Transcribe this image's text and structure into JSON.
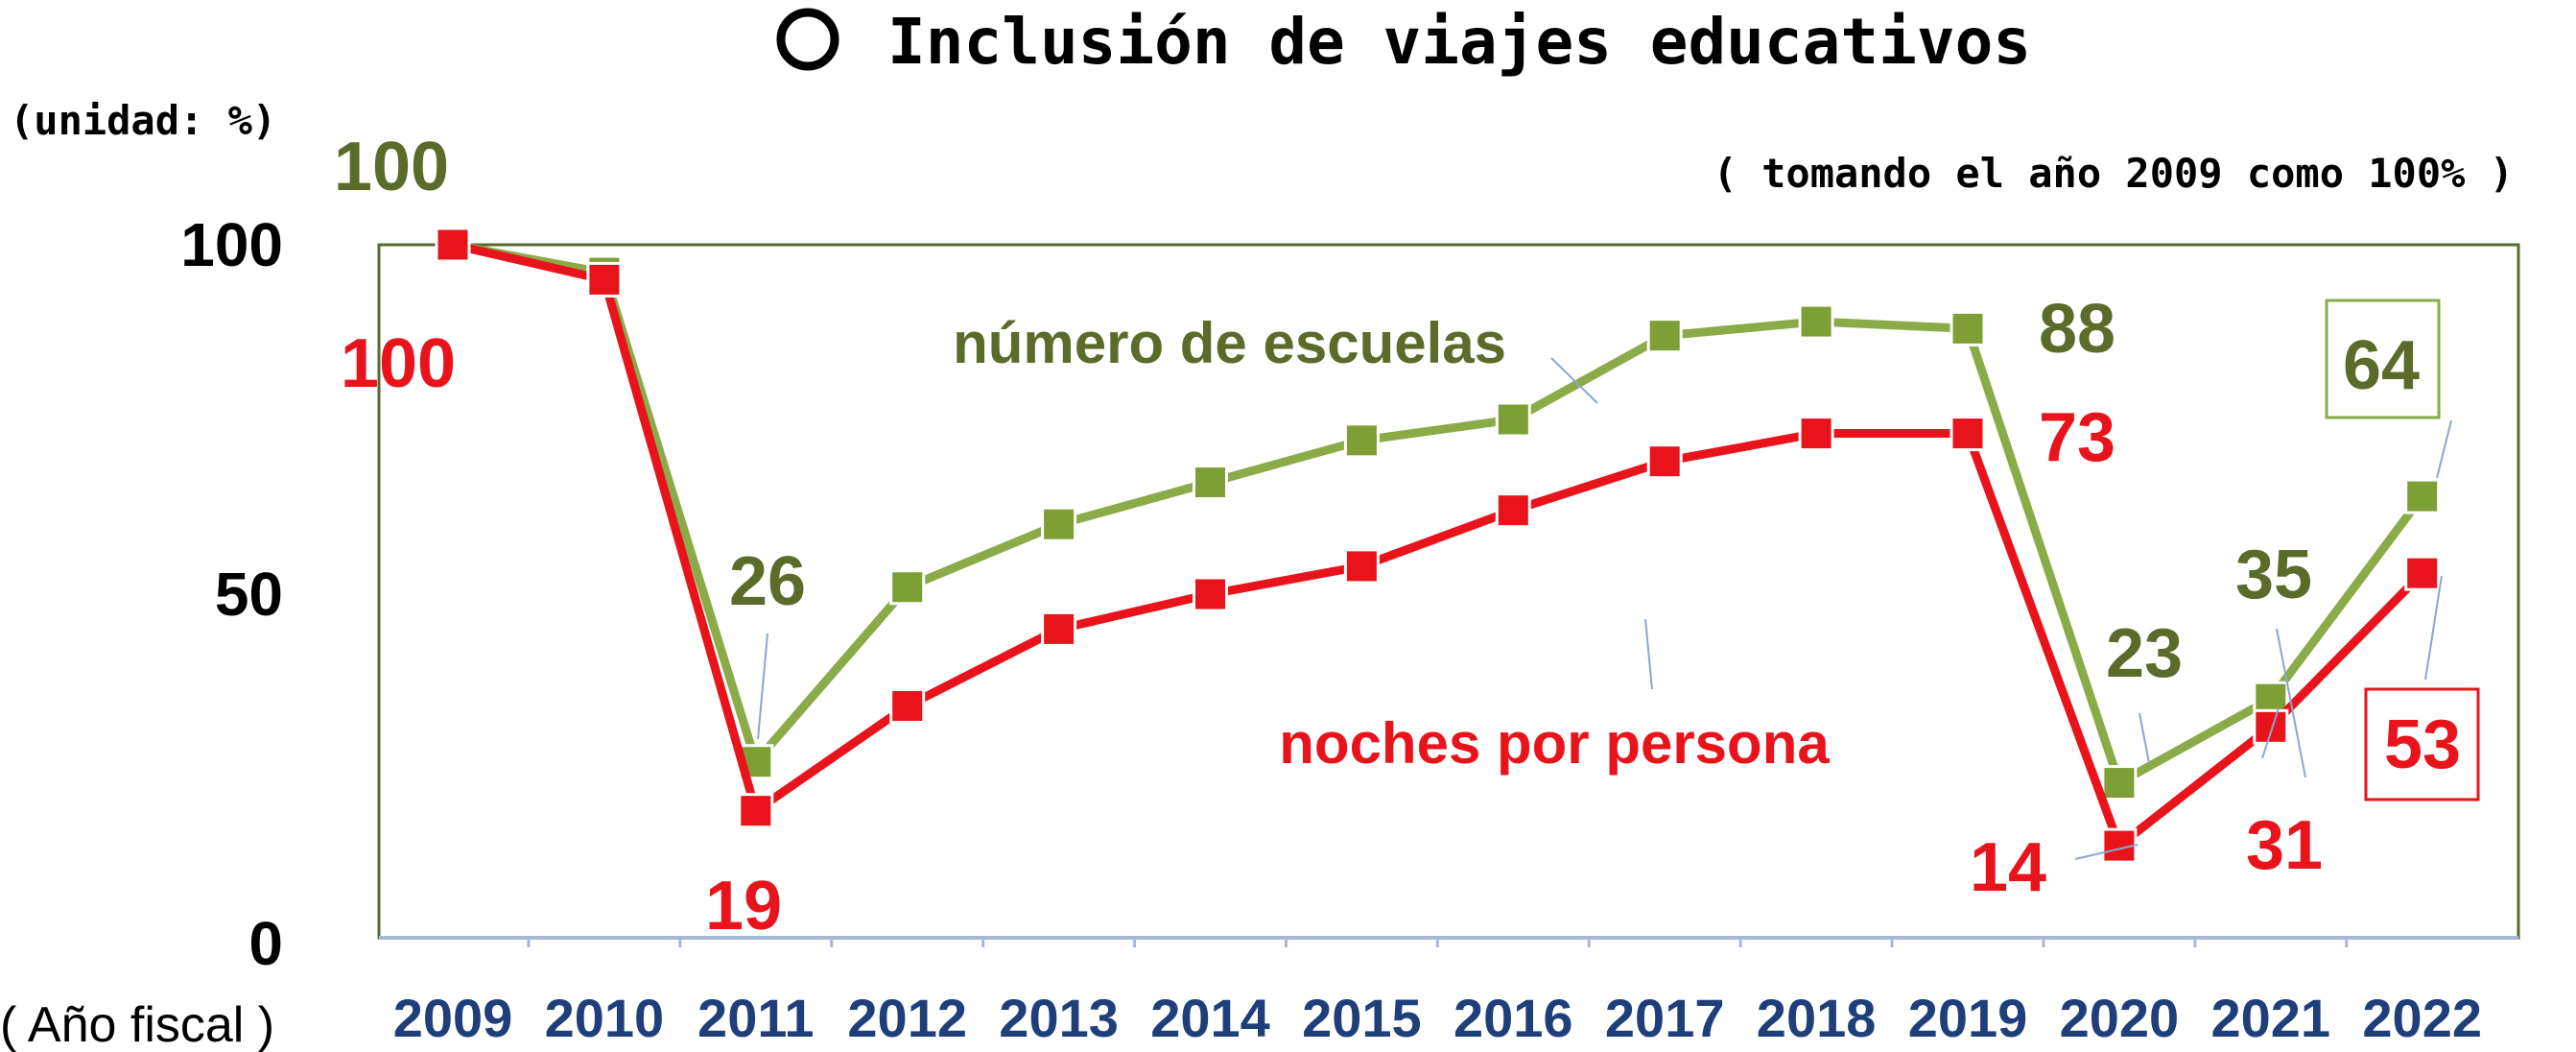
{
  "page": {
    "title": "Inclusión de viajes educativos",
    "unit_label": "(unidad: %)",
    "base_note": "( tomando el año 2009 como 100% )",
    "x_axis_title": "( Año fiscal )",
    "title_bullet_icon": "circle-outline-icon"
  },
  "colors": {
    "schools": "#5a6b2a",
    "schools_line": "#8aab48",
    "nights": "#e8131b",
    "axis_tick": "#1f3f7a",
    "plot_border": "#556b2f"
  },
  "chart_data": {
    "type": "line",
    "title": "Inclusión de viajes educativos",
    "xlabel": "( Año fiscal )",
    "ylabel": "(unidad: %)",
    "ylim": [
      0,
      100
    ],
    "yticks": [
      "0",
      "50",
      "100"
    ],
    "categories": [
      "2009",
      "2010",
      "2011",
      "2012",
      "2013",
      "2014",
      "2015",
      "2016",
      "2017",
      "2018",
      "2019",
      "2020",
      "2021",
      "2022"
    ],
    "grid": false,
    "series": [
      {
        "key": "schools",
        "name": "número de escuelas",
        "values": [
          100,
          96,
          26,
          51,
          60,
          66,
          72,
          75,
          87,
          89,
          88,
          23,
          35,
          64
        ],
        "labels": {
          "0": "100",
          "2": "26",
          "10": "88",
          "11": "23",
          "12": "35",
          "13": "64"
        }
      },
      {
        "key": "nights",
        "name": "noches por persona",
        "values": [
          100,
          95,
          19,
          34,
          45,
          50,
          54,
          62,
          69,
          73,
          73,
          14,
          31,
          53
        ],
        "labels": {
          "0": "100",
          "2": "19",
          "10": "73",
          "11": "14",
          "12": "31",
          "13": "53"
        }
      }
    ]
  }
}
